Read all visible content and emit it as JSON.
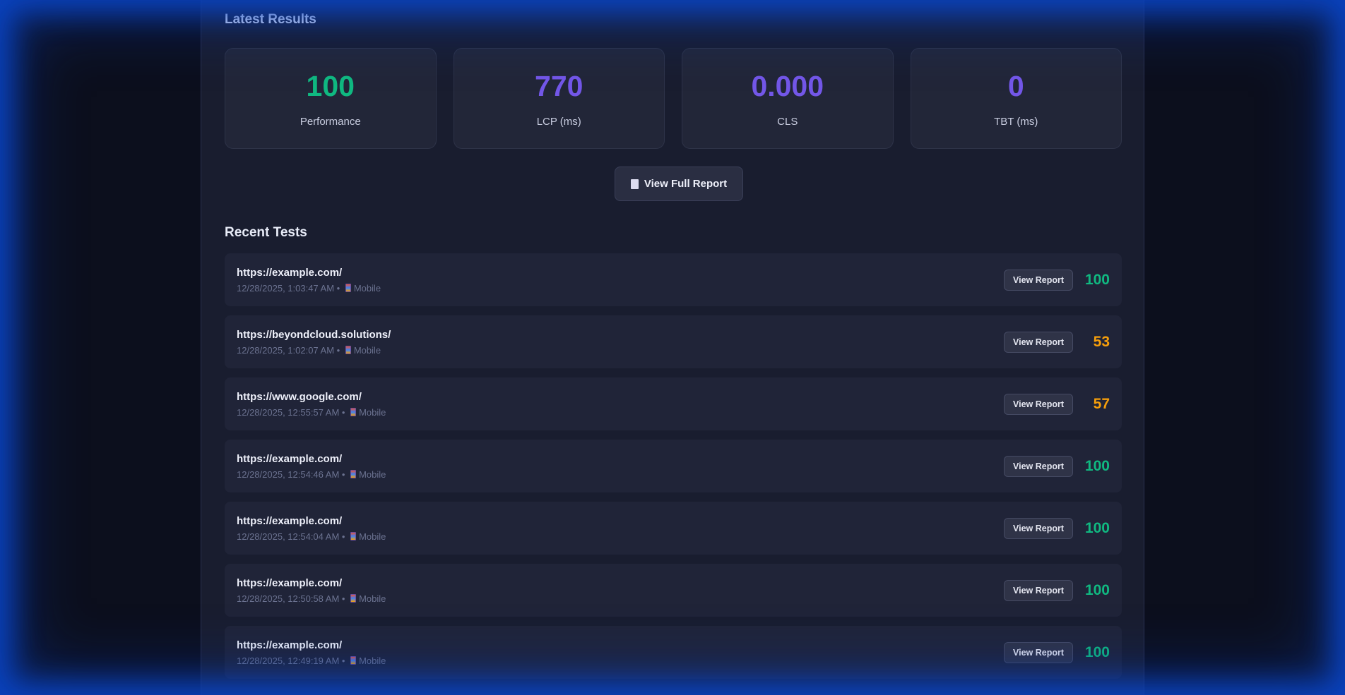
{
  "latest": {
    "title": "Latest Results",
    "metrics": [
      {
        "value": "100",
        "label": "Performance",
        "color": "#10b981"
      },
      {
        "value": "770",
        "label": "LCP (ms)",
        "color": "#7357e8"
      },
      {
        "value": "0.000",
        "label": "CLS",
        "color": "#7357e8"
      },
      {
        "value": "0",
        "label": "TBT (ms)",
        "color": "#7357e8"
      }
    ],
    "full_report_icon": "document-icon",
    "full_report_label": "View Full Report"
  },
  "recent": {
    "title": "Recent Tests",
    "view_label": "View Report",
    "device_icon": "mobile-phone-icon",
    "items": [
      {
        "url": "https://example.com/",
        "time": "12/28/2025, 1:03:47 AM",
        "device": "Mobile",
        "score": "100",
        "color": "#10b981"
      },
      {
        "url": "https://beyondcloud.solutions/",
        "time": "12/28/2025, 1:02:07 AM",
        "device": "Mobile",
        "score": "53",
        "color": "#f59e0b"
      },
      {
        "url": "https://www.google.com/",
        "time": "12/28/2025, 12:55:57 AM",
        "device": "Mobile",
        "score": "57",
        "color": "#f59e0b"
      },
      {
        "url": "https://example.com/",
        "time": "12/28/2025, 12:54:46 AM",
        "device": "Mobile",
        "score": "100",
        "color": "#10b981"
      },
      {
        "url": "https://example.com/",
        "time": "12/28/2025, 12:54:04 AM",
        "device": "Mobile",
        "score": "100",
        "color": "#10b981"
      },
      {
        "url": "https://example.com/",
        "time": "12/28/2025, 12:50:58 AM",
        "device": "Mobile",
        "score": "100",
        "color": "#10b981"
      },
      {
        "url": "https://example.com/",
        "time": "12/28/2025, 12:49:19 AM",
        "device": "Mobile",
        "score": "100",
        "color": "#10b981"
      }
    ]
  }
}
